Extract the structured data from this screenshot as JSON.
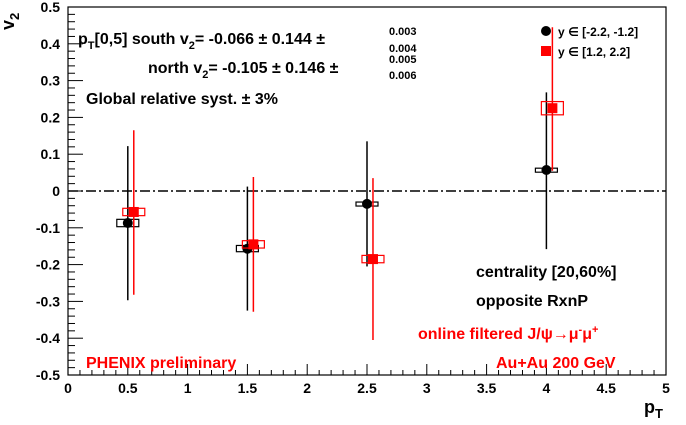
{
  "chart_data": {
    "type": "scatter",
    "xlabel": "p",
    "xlabel_sub": "T",
    "ylabel": "v",
    "ylabel_sub": "2",
    "xlim": [
      0,
      5
    ],
    "ylim": [
      -0.5,
      0.5
    ],
    "x_ticks": [
      "0",
      "0.5",
      "1",
      "1.5",
      "2",
      "2.5",
      "3",
      "3.5",
      "4",
      "4.5",
      "5"
    ],
    "y_ticks": [
      "-0.5",
      "-0.4",
      "-0.3",
      "-0.2",
      "-0.1",
      "0",
      "0.1",
      "0.2",
      "0.3",
      "0.4",
      "0.5"
    ],
    "grid": false,
    "legend_position": "top-right",
    "series": [
      {
        "legend_label": "y ∈ [-2.2, -1.2]",
        "color": "#000000",
        "marker": "circle",
        "points": [
          {
            "x": 0.5,
            "y": -0.087,
            "err_low": -0.297,
            "err_high": 0.122,
            "syst_low": -0.097,
            "syst_high": -0.077
          },
          {
            "x": 1.5,
            "y": -0.157,
            "err_low": -0.325,
            "err_high": 0.012,
            "syst_low": -0.165,
            "syst_high": -0.148
          },
          {
            "x": 2.5,
            "y": -0.035,
            "err_low": -0.205,
            "err_high": 0.135,
            "syst_low": -0.04,
            "syst_high": -0.03
          },
          {
            "x": 4.0,
            "y": 0.057,
            "err_low": -0.158,
            "err_high": 0.268,
            "syst_low": 0.052,
            "syst_high": 0.062
          }
        ]
      },
      {
        "legend_label": "y ∈ [1.2, 2.2]",
        "color": "#ff0000",
        "marker": "square",
        "points": [
          {
            "x": 0.55,
            "y": -0.057,
            "err_low": -0.282,
            "err_high": 0.165,
            "syst_low": -0.067,
            "syst_high": -0.047
          },
          {
            "x": 1.55,
            "y": -0.145,
            "err_low": -0.328,
            "err_high": 0.038,
            "syst_low": -0.155,
            "syst_high": -0.135
          },
          {
            "x": 2.55,
            "y": -0.185,
            "err_low": -0.405,
            "err_high": 0.035,
            "syst_low": -0.195,
            "syst_high": -0.175
          },
          {
            "x": 4.05,
            "y": 0.225,
            "err_low": 0.055,
            "err_high": 0.445,
            "syst_low": 0.207,
            "syst_high": 0.243
          }
        ]
      }
    ],
    "reference_line": {
      "y": 0,
      "style": "dash-dot"
    },
    "annotations": {
      "south_prefix": "p",
      "south_prefix_sub": "T",
      "south_range": "[0,5] south v",
      "south_v_sub": "2",
      "south_value": "= -0.066 ± 0.144 ±",
      "south_syst_up": "0.003",
      "south_syst_down": "0.004",
      "north_label": "north v",
      "north_v_sub": "2",
      "north_value": "= -0.105 ± 0.146 ±",
      "north_syst_up": "0.005",
      "north_syst_down": "0.006",
      "global_syst": "Global relative syst. ± 3%",
      "centrality": "centrality [20,60%]",
      "rxnp": "opposite RxnP",
      "filter_prefix": "online filtered J/ψ→μ",
      "filter_mu_sup": "-",
      "filter_mu2": "μ",
      "filter_mu2_sup": "+",
      "preliminary": "PHENIX preliminary",
      "collision": "Au+Au 200 GeV"
    }
  }
}
